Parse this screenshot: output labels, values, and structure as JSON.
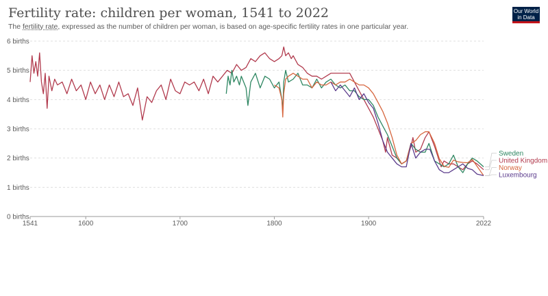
{
  "header": {
    "title": "Fertility rate: children per woman, 1541 to 2022",
    "subtitle_pre": "The ",
    "subtitle_link": "fertility rate",
    "subtitle_post": ", expressed as the number of children per woman, is based on age-specific fertility rates in one particular year.",
    "logo_line1": "Our World",
    "logo_line2": "in Data"
  },
  "chart_data": {
    "type": "line",
    "xlim": [
      1541,
      2022
    ],
    "ylim": [
      0,
      6
    ],
    "x_ticks": [
      {
        "value": 1541,
        "label": "1541"
      },
      {
        "value": 1600,
        "label": "1600"
      },
      {
        "value": 1700,
        "label": "1700"
      },
      {
        "value": 1800,
        "label": "1800"
      },
      {
        "value": 1900,
        "label": "1900"
      },
      {
        "value": 2022,
        "label": "2022"
      }
    ],
    "y_ticks": [
      {
        "value": 0,
        "label": "0 births"
      },
      {
        "value": 1,
        "label": "1 births"
      },
      {
        "value": 2,
        "label": "2 births"
      },
      {
        "value": 3,
        "label": "3 births"
      },
      {
        "value": 4,
        "label": "4 births"
      },
      {
        "value": 5,
        "label": "5 births"
      },
      {
        "value": 6,
        "label": "6 births"
      }
    ],
    "grid": "horizontal dashed",
    "legend_position": "right",
    "series": [
      {
        "name": "United Kingdom",
        "color": "#b13a4d",
        "x": [
          1541,
          1543,
          1545,
          1547,
          1549,
          1551,
          1553,
          1555,
          1557,
          1559,
          1561,
          1564,
          1567,
          1570,
          1575,
          1580,
          1585,
          1590,
          1595,
          1600,
          1605,
          1610,
          1615,
          1620,
          1625,
          1630,
          1635,
          1640,
          1645,
          1650,
          1655,
          1660,
          1665,
          1670,
          1675,
          1680,
          1685,
          1690,
          1695,
          1700,
          1705,
          1710,
          1715,
          1720,
          1725,
          1730,
          1735,
          1740,
          1745,
          1750,
          1755,
          1760,
          1765,
          1770,
          1775,
          1780,
          1785,
          1790,
          1795,
          1800,
          1805,
          1808,
          1810,
          1812,
          1815,
          1818,
          1820,
          1825,
          1830,
          1835,
          1840,
          1845,
          1850,
          1855,
          1860,
          1865,
          1870,
          1875,
          1880,
          1885,
          1890,
          1895,
          1900,
          1905,
          1910,
          1915,
          1918,
          1920,
          1925,
          1930,
          1935,
          1940,
          1945,
          1947,
          1950,
          1955,
          1960,
          1964,
          1970,
          1977,
          1980,
          1985,
          1990,
          1995,
          2000,
          2005,
          2010,
          2015,
          2022
        ],
        "y": [
          4.6,
          5.5,
          4.9,
          5.3,
          4.8,
          5.6,
          4.6,
          4.2,
          4.9,
          3.7,
          4.8,
          4.3,
          4.7,
          4.5,
          4.6,
          4.2,
          4.7,
          4.3,
          4.5,
          4.0,
          4.6,
          4.2,
          4.5,
          4.0,
          4.5,
          4.1,
          4.6,
          4.1,
          4.2,
          3.8,
          4.4,
          3.3,
          4.1,
          3.9,
          4.3,
          4.5,
          4.0,
          4.7,
          4.3,
          4.2,
          4.6,
          4.5,
          4.6,
          4.3,
          4.7,
          4.2,
          4.8,
          4.6,
          4.8,
          5.0,
          4.9,
          5.2,
          5.0,
          5.1,
          5.4,
          5.3,
          5.5,
          5.6,
          5.4,
          5.3,
          5.4,
          5.5,
          5.8,
          5.5,
          5.6,
          5.4,
          5.5,
          5.2,
          5.1,
          4.9,
          4.8,
          4.8,
          4.7,
          4.8,
          4.9,
          4.9,
          4.9,
          4.9,
          4.9,
          4.6,
          4.3,
          4.0,
          3.7,
          3.4,
          3.0,
          2.6,
          2.2,
          2.7,
          2.1,
          2.0,
          1.8,
          1.9,
          2.4,
          2.7,
          2.2,
          2.3,
          2.7,
          2.9,
          2.4,
          1.7,
          1.9,
          1.8,
          1.8,
          1.7,
          1.6,
          1.8,
          1.9,
          1.8,
          1.6
        ]
      },
      {
        "name": "Sweden",
        "color": "#2d8661",
        "x": [
          1749,
          1751,
          1753,
          1755,
          1757,
          1760,
          1763,
          1765,
          1770,
          1772,
          1775,
          1780,
          1785,
          1790,
          1795,
          1800,
          1805,
          1808,
          1809,
          1810,
          1812,
          1815,
          1820,
          1825,
          1830,
          1835,
          1840,
          1845,
          1850,
          1855,
          1860,
          1865,
          1870,
          1875,
          1880,
          1885,
          1890,
          1895,
          1900,
          1905,
          1910,
          1915,
          1920,
          1925,
          1930,
          1935,
          1940,
          1945,
          1950,
          1955,
          1960,
          1964,
          1970,
          1975,
          1980,
          1985,
          1990,
          1995,
          2000,
          2005,
          2010,
          2015,
          2022
        ],
        "y": [
          4.2,
          4.8,
          4.5,
          5.0,
          4.6,
          4.8,
          4.5,
          4.8,
          4.4,
          3.8,
          4.6,
          4.9,
          4.4,
          4.8,
          4.7,
          4.4,
          4.6,
          4.0,
          3.6,
          4.6,
          5.0,
          4.6,
          4.7,
          4.9,
          4.5,
          4.5,
          4.4,
          4.7,
          4.4,
          4.6,
          4.7,
          4.5,
          4.4,
          4.5,
          4.3,
          4.3,
          4.1,
          4.0,
          4.0,
          3.8,
          3.4,
          3.1,
          2.8,
          2.4,
          2.0,
          1.8,
          1.9,
          2.5,
          2.3,
          2.2,
          2.2,
          2.5,
          1.9,
          1.8,
          1.7,
          1.8,
          2.1,
          1.7,
          1.5,
          1.8,
          2.0,
          1.9,
          1.7
        ]
      },
      {
        "name": "Norway",
        "color": "#d6653d",
        "x": [
          1800,
          1805,
          1808,
          1809,
          1810,
          1812,
          1815,
          1820,
          1825,
          1830,
          1835,
          1840,
          1845,
          1850,
          1855,
          1860,
          1865,
          1870,
          1875,
          1880,
          1885,
          1890,
          1895,
          1900,
          1905,
          1910,
          1915,
          1920,
          1925,
          1930,
          1935,
          1940,
          1945,
          1950,
          1955,
          1960,
          1964,
          1970,
          1975,
          1980,
          1985,
          1990,
          1995,
          2000,
          2005,
          2010,
          2015,
          2022
        ],
        "y": [
          4.5,
          4.4,
          4.0,
          3.4,
          4.2,
          4.7,
          4.8,
          4.9,
          4.8,
          4.7,
          4.7,
          4.4,
          4.6,
          4.5,
          4.5,
          4.6,
          4.5,
          4.6,
          4.6,
          4.7,
          4.6,
          4.5,
          4.5,
          4.4,
          4.2,
          3.9,
          3.6,
          3.2,
          2.7,
          2.1,
          1.8,
          1.9,
          2.5,
          2.6,
          2.8,
          2.9,
          2.9,
          2.5,
          1.98,
          1.72,
          1.68,
          1.93,
          1.87,
          1.85,
          1.84,
          1.95,
          1.72,
          1.4
        ]
      },
      {
        "name": "Luxembourg",
        "color": "#5a3a8b",
        "x": [
          1860,
          1865,
          1870,
          1875,
          1880,
          1885,
          1890,
          1895,
          1900,
          1905,
          1910,
          1915,
          1920,
          1925,
          1930,
          1935,
          1940,
          1945,
          1950,
          1955,
          1960,
          1965,
          1970,
          1975,
          1980,
          1985,
          1990,
          1995,
          2000,
          2005,
          2010,
          2015,
          2022
        ],
        "y": [
          4.6,
          4.3,
          4.5,
          4.3,
          4.1,
          4.4,
          4.0,
          4.2,
          3.9,
          3.7,
          3.2,
          2.6,
          2.2,
          2.0,
          1.8,
          1.7,
          1.7,
          2.5,
          2.0,
          2.2,
          2.3,
          2.3,
          1.9,
          1.6,
          1.5,
          1.5,
          1.6,
          1.7,
          1.8,
          1.65,
          1.6,
          1.45,
          1.4
        ]
      }
    ],
    "legend_order": [
      "Sweden",
      "United Kingdom",
      "Norway",
      "Luxembourg"
    ]
  }
}
